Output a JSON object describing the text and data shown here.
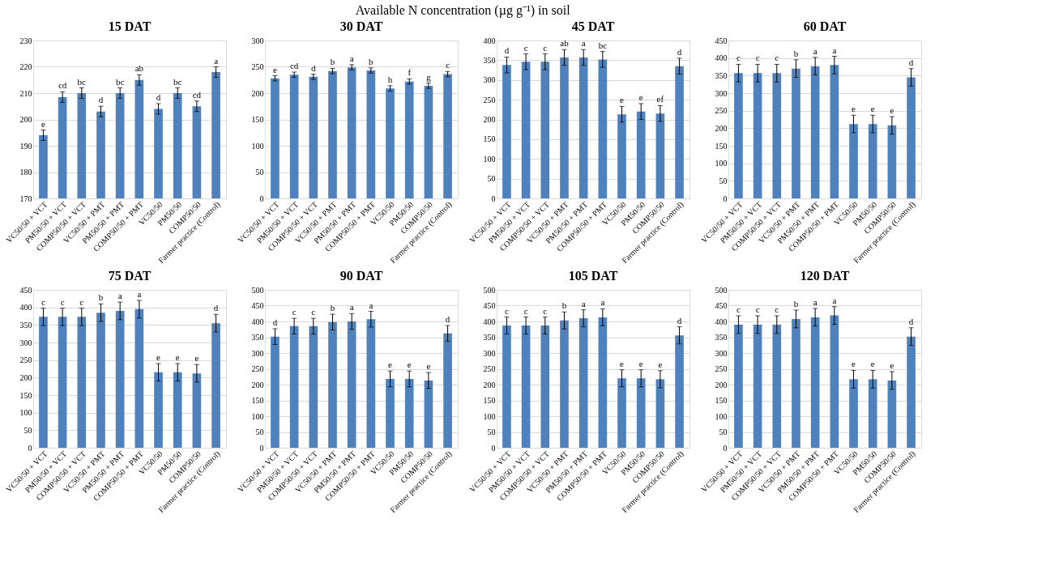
{
  "chart_data": [
    {
      "type": "bar",
      "title": "15 DAT",
      "categories": [
        "VC50/50 + VCT",
        "PM50/50 + VCT",
        "COMP50/50 + VCT",
        "VC50/50 + PMT",
        "PM50/50 + PMT",
        "COMP50/50 + PMT",
        "VC50/50",
        "PM50/50",
        "COMP50/50",
        "Farmer practice (Control)"
      ],
      "values": [
        194,
        208.5,
        210,
        203,
        210,
        215,
        204,
        210,
        205,
        218
      ],
      "errors": [
        2,
        2,
        2,
        2,
        2,
        2,
        2,
        2,
        2,
        2
      ],
      "color": "#4f81bd",
      "ylim": [
        170,
        230
      ],
      "yticks": [
        170,
        180,
        190,
        200,
        210,
        220,
        230
      ],
      "grid": "y",
      "value_labels": [
        "e",
        "cd",
        "bc",
        "d",
        "bc",
        "ab",
        "d",
        "bc",
        "cd",
        "a"
      ],
      "annotations": [
        "Available N concentration (µg g⁻¹) in soil"
      ]
    },
    {
      "type": "bar",
      "title": "30 DAT",
      "categories": [
        "VC50/50 + VCT",
        "PM50/50 + VCT",
        "COMP50/50 + VCT",
        "VC50/50 + PMT",
        "PM50/50 + PMT",
        "COMP50/50 + PMT",
        "VC50/50",
        "PM50/50",
        "COMP50/50",
        "Farmer practice (Control)"
      ],
      "values": [
        228,
        235,
        231,
        242,
        249,
        243,
        209,
        222,
        214,
        236
      ],
      "errors": [
        5,
        5,
        5,
        5,
        5,
        5,
        5,
        5,
        5,
        5
      ],
      "color": "#4f81bd",
      "ylim": [
        0,
        300
      ],
      "yticks": [
        0,
        50,
        100,
        150,
        200,
        250,
        300
      ],
      "grid": "y",
      "value_labels": [
        "e",
        "cd",
        "d",
        "b",
        "a",
        "b",
        "h",
        "f",
        "g",
        "c"
      ]
    },
    {
      "type": "bar",
      "title": "45 DAT",
      "categories": [
        "VC50/50 + VCT",
        "PM50/50 + VCT",
        "COMP50/50 + VCT",
        "VC50/50 + PMT",
        "PM50/50 + PMT",
        "COMP50/50 + PMT",
        "VC50/50",
        "PM50/50",
        "COMP50/50",
        "Farmer practice (Control)"
      ],
      "values": [
        338,
        346,
        346,
        357,
        357,
        352,
        213,
        220,
        215,
        335
      ],
      "errors": [
        20,
        20,
        20,
        20,
        20,
        20,
        20,
        20,
        20,
        20
      ],
      "color": "#4f81bd",
      "ylim": [
        0,
        400
      ],
      "yticks": [
        0,
        50,
        100,
        150,
        200,
        250,
        300,
        350,
        400
      ],
      "grid": "y",
      "value_labels": [
        "d",
        "c",
        "c",
        "ab",
        "a",
        "bc",
        "e",
        "e",
        "ef",
        "d"
      ]
    },
    {
      "type": "bar",
      "title": "60 DAT",
      "categories": [
        "VC50/50 + VCT",
        "PM50/50 + VCT",
        "COMP50/50 + VCT",
        "VC50/50 + PMT",
        "PM50/50 + PMT",
        "COMP50/50 + PMT",
        "VC50/50",
        "PM50/50",
        "COMP50/50",
        "Farmer practice (Control)"
      ],
      "values": [
        357,
        357,
        357,
        370,
        377,
        380,
        212,
        212,
        208,
        345
      ],
      "errors": [
        25,
        25,
        25,
        25,
        25,
        25,
        25,
        25,
        25,
        25
      ],
      "color": "#4f81bd",
      "ylim": [
        0,
        450
      ],
      "yticks": [
        0,
        50,
        100,
        150,
        200,
        250,
        300,
        350,
        400,
        450
      ],
      "grid": "y",
      "value_labels": [
        "c",
        "c",
        "c",
        "b",
        "a",
        "a",
        "e",
        "e",
        "e",
        "d"
      ]
    },
    {
      "type": "bar",
      "title": "75 DAT",
      "categories": [
        "VC50/50 + VCT",
        "PM50/50 + VCT",
        "COMP50/50 + VCT",
        "VC50/50 + PMT",
        "PM50/50 + PMT",
        "COMP50/50 + PMT",
        "VC50/50",
        "PM50/50",
        "COMP50/50",
        "Farmer practice (Control)"
      ],
      "values": [
        373,
        373,
        373,
        385,
        390,
        395,
        215,
        215,
        212,
        355
      ],
      "errors": [
        25,
        25,
        25,
        25,
        25,
        25,
        25,
        25,
        25,
        25
      ],
      "color": "#4f81bd",
      "ylim": [
        0,
        450
      ],
      "yticks": [
        0,
        50,
        100,
        150,
        200,
        250,
        300,
        350,
        400,
        450
      ],
      "grid": "y",
      "value_labels": [
        "c",
        "c",
        "c",
        "b",
        "a",
        "a",
        "e",
        "e",
        "e",
        "d"
      ]
    },
    {
      "type": "bar",
      "title": "90 DAT",
      "categories": [
        "VC50/50 + VCT",
        "PM50/50 + VCT",
        "COMP50/50 + VCT",
        "VC50/50 + PMT",
        "PM50/50 + PMT",
        "COMP50/50 + PMT",
        "VC50/50",
        "PM50/50",
        "COMP50/50",
        "Farmer practice (Control)"
      ],
      "values": [
        352,
        385,
        385,
        398,
        400,
        407,
        218,
        218,
        213,
        362
      ],
      "errors": [
        25,
        25,
        25,
        25,
        25,
        25,
        25,
        25,
        25,
        25
      ],
      "color": "#4f81bd",
      "ylim": [
        0,
        500
      ],
      "yticks": [
        0,
        50,
        100,
        150,
        200,
        250,
        300,
        350,
        400,
        450,
        500
      ],
      "grid": "y",
      "value_labels": [
        "d",
        "c",
        "c",
        "b",
        "a",
        "a",
        "e",
        "e",
        "e",
        "d"
      ]
    },
    {
      "type": "bar",
      "title": "105 DAT",
      "categories": [
        "VC50/50 + VCT",
        "PM50/50 + VCT",
        "COMP50/50 + VCT",
        "VC50/50 + PMT",
        "PM50/50 + PMT",
        "COMP50/50 + PMT",
        "VC50/50",
        "PM50/50",
        "COMP50/50",
        "Farmer practice (Control)"
      ],
      "values": [
        387,
        387,
        387,
        403,
        410,
        413,
        220,
        220,
        217,
        356
      ],
      "errors": [
        27,
        27,
        27,
        27,
        27,
        27,
        27,
        27,
        27,
        27
      ],
      "color": "#4f81bd",
      "ylim": [
        0,
        500
      ],
      "yticks": [
        0,
        50,
        100,
        150,
        200,
        250,
        300,
        350,
        400,
        450,
        500
      ],
      "grid": "y",
      "value_labels": [
        "c",
        "c",
        "c",
        "b",
        "a",
        "a",
        "e",
        "e",
        "e",
        "d"
      ]
    },
    {
      "type": "bar",
      "title": "120 DAT",
      "categories": [
        "VC50/50 + VCT",
        "PM50/50 + VCT",
        "COMP50/50 + VCT",
        "VC50/50 + PMT",
        "PM50/50 + PMT",
        "COMP50/50 + PMT",
        "VC50/50",
        "PM50/50",
        "COMP50/50",
        "Farmer practice (Control)"
      ],
      "values": [
        390,
        390,
        390,
        408,
        413,
        419,
        217,
        217,
        213,
        352
      ],
      "errors": [
        28,
        28,
        28,
        28,
        28,
        28,
        28,
        28,
        28,
        28
      ],
      "color": "#4f81bd",
      "ylim": [
        0,
        500
      ],
      "yticks": [
        0,
        50,
        100,
        150,
        200,
        250,
        300,
        350,
        400,
        450,
        500
      ],
      "grid": "y",
      "value_labels": [
        "c",
        "c",
        "c",
        "b",
        "a",
        "a",
        "e",
        "e",
        "e",
        "d"
      ]
    }
  ]
}
